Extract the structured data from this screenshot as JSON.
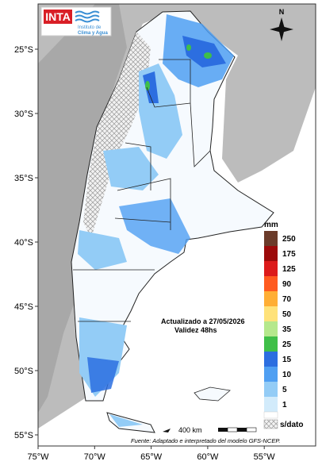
{
  "logo": {
    "brand": "INTA",
    "institute": [
      "Instituto de",
      "Clima y Agua"
    ]
  },
  "north": "N",
  "latitudes": [
    "25°S",
    "30°S",
    "35°S",
    "40°S",
    "45°S",
    "50°S",
    "55°S"
  ],
  "longitudes": [
    "75°W",
    "70°W",
    "65°W",
    "60°W",
    "55°W"
  ],
  "legend": {
    "title": "mm",
    "items": [
      {
        "label": "250",
        "color": "#6b3b2a"
      },
      {
        "label": "175",
        "color": "#9c0a0a"
      },
      {
        "label": "125",
        "color": "#dc1a1a"
      },
      {
        "label": "90",
        "color": "#ff5a1f"
      },
      {
        "label": "70",
        "color": "#ffae35"
      },
      {
        "label": "50",
        "color": "#ffe27a"
      },
      {
        "label": "35",
        "color": "#b5e88c"
      },
      {
        "label": "25",
        "color": "#3fbf48"
      },
      {
        "label": "15",
        "color": "#2c6ee0"
      },
      {
        "label": "10",
        "color": "#4f9ff2"
      },
      {
        "label": "5",
        "color": "#93ccf6"
      },
      {
        "label": "1",
        "color": "#d2ebfb"
      }
    ],
    "nodata": "s/dato"
  },
  "update": "Actualizado a 27/05/2026",
  "validity": "Validez 48hs",
  "scale": "400 km",
  "source": "Fuente: Adaptado e interpretado del modelo GFS-NCEP."
}
